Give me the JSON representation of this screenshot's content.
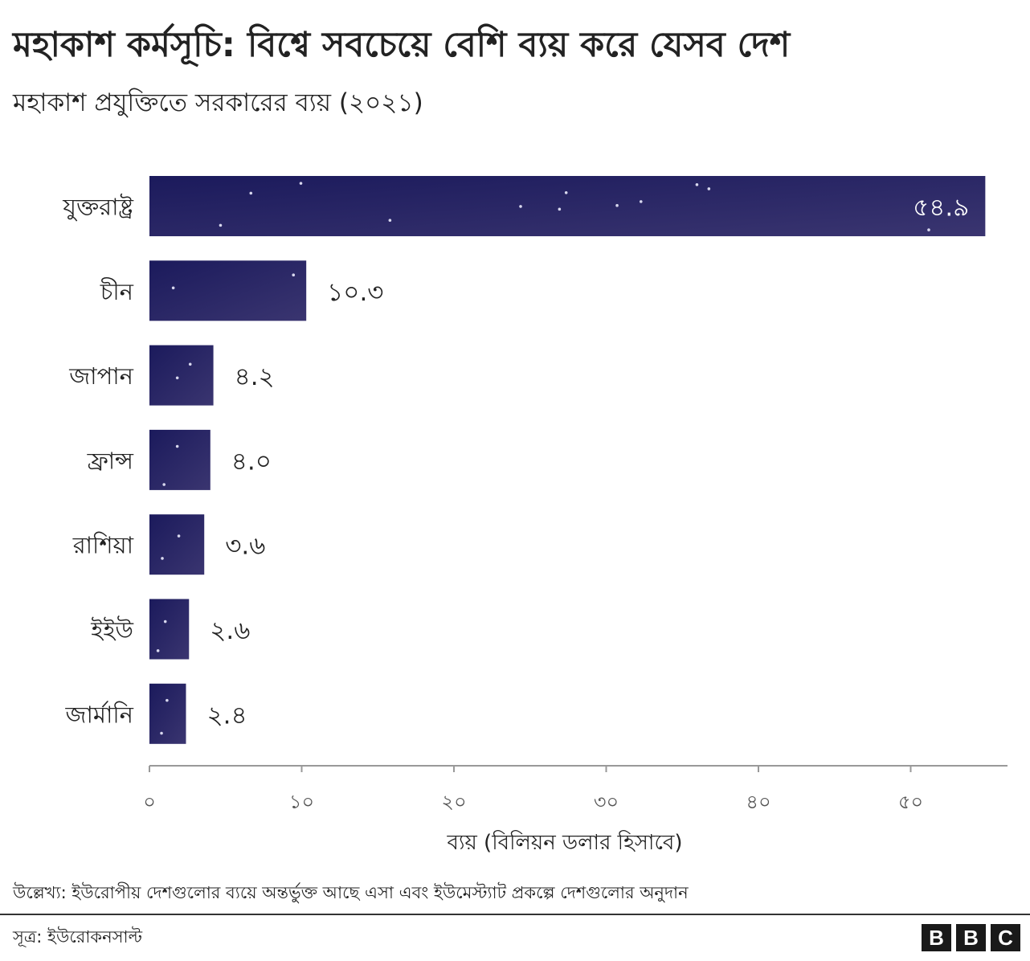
{
  "header": {
    "title": "মহাকাশ কর্মসূচি: বিশ্বে সবচেয়ে বেশি ব্যয় করে যেসব দেশ",
    "subtitle": "মহাকাশ প্রযুক্তিতে সরকারের ব্যয় (২০২১)"
  },
  "chart_data": {
    "type": "bar",
    "orientation": "horizontal",
    "categories": [
      "যুক্তরাষ্ট্র",
      "চীন",
      "জাপান",
      "ফ্রান্স",
      "রাশিয়া",
      "ইইউ",
      "জার্মানি"
    ],
    "values": [
      54.9,
      10.3,
      4.2,
      4.0,
      3.6,
      2.6,
      2.4
    ],
    "value_labels": [
      "৫৪.৯",
      "১০.৩",
      "৪.২",
      "৪.০",
      "৩.৬",
      "২.৬",
      "২.৪"
    ],
    "xlabel": "ব্যয় (বিলিয়ন ডলার হিসাবে)",
    "xlim": [
      0,
      57
    ],
    "xticks": [
      0,
      10,
      20,
      30,
      40,
      50
    ],
    "xtick_labels": [
      "০",
      "১০",
      "২০",
      "৩০",
      "৪০",
      "৫০"
    ],
    "bar_color_start": "#1b1a5c",
    "bar_color_end": "#3a3570",
    "star_color": "#d8d8ee",
    "grid": false
  },
  "footer": {
    "note": "উল্লেখ্য: ইউরোপীয় দেশগুলোর ব্যয়ে অন্তর্ভুক্ত আছে এসা এবং ইউমেস্ট্যাট প্রকল্পে দেশগুলোর অনুদান",
    "source": "সূত্র: ইউরোকনসাল্ট",
    "logo_letters": [
      "B",
      "B",
      "C"
    ]
  }
}
